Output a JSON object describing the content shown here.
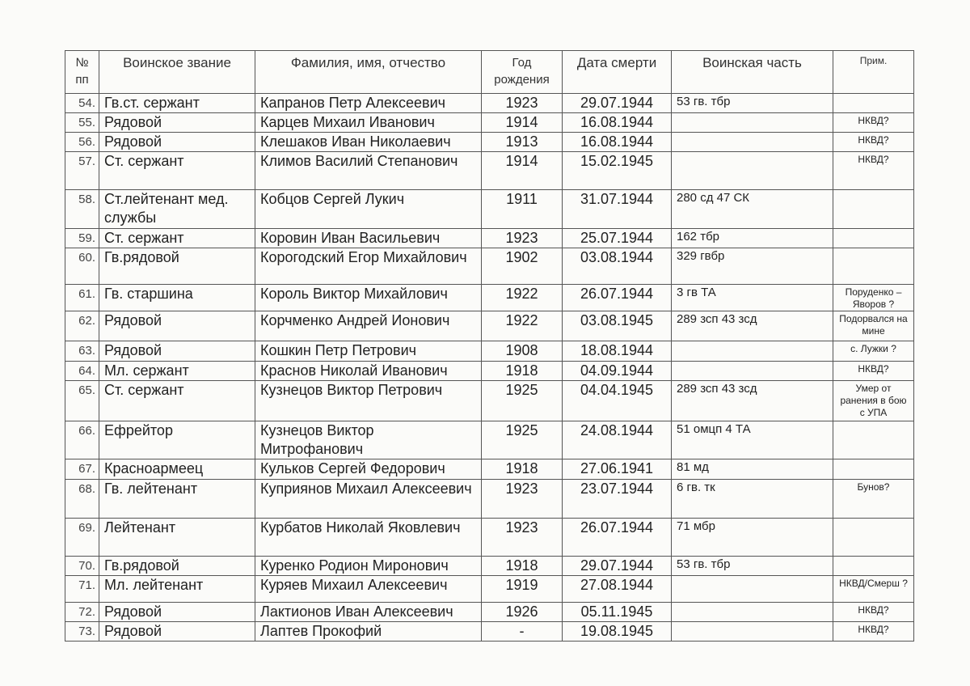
{
  "header": {
    "num": "№ пп",
    "rank": "Воинское звание",
    "name": "Фамилия, имя, отчество",
    "birth": "Год рождения",
    "death": "Дата смерти",
    "unit": "Воинская часть",
    "note": "Прим."
  },
  "rows": [
    {
      "num": "54.",
      "rank": "Гв.ст. сержант",
      "name": "Капранов Петр Алексеевич",
      "birth": "1923",
      "death": "29.07.1944",
      "unit": "53 гв. тбр",
      "note": ""
    },
    {
      "num": "55.",
      "rank": "Рядовой",
      "name": "Карцев Михаил Иванович",
      "birth": "1914",
      "death": "16.08.1944",
      "unit": "",
      "note": "НКВД?"
    },
    {
      "num": "56.",
      "rank": "Рядовой",
      "name": "Клешаков Иван Николаевич",
      "birth": "1913",
      "death": "16.08.1944",
      "unit": "",
      "note": "НКВД?"
    },
    {
      "num": "57.",
      "rank": "Ст. сержант",
      "name": "Климов Василий Степанович",
      "birth": "1914",
      "death": "15.02.1945",
      "unit": "",
      "note": "НКВД?"
    },
    {
      "num": "58.",
      "rank": "Ст.лейтенант мед. службы",
      "name": "Кобцов Сергей Лукич",
      "birth": "1911",
      "death": "31.07.1944",
      "unit": "280 сд 47 СК",
      "note": ""
    },
    {
      "num": "59.",
      "rank": "Ст. сержант",
      "name": "Коровин Иван Васильевич",
      "birth": "1923",
      "death": "25.07.1944",
      "unit": "162 тбр",
      "note": ""
    },
    {
      "num": "60.",
      "rank": "Гв.рядовой",
      "name": "Корогодский Егор Михайлович",
      "birth": "1902",
      "death": "03.08.1944",
      "unit": "329 гвбр",
      "note": ""
    },
    {
      "num": "61.",
      "rank": "Гв. старшина",
      "name": "Король Виктор Михайлович",
      "birth": "1922",
      "death": "26.07.1944",
      "unit": "3 гв ТА",
      "note": "Поруденко – Яворов ?"
    },
    {
      "num": "62.",
      "rank": "Рядовой",
      "name": "Корчменко Андрей Ионович",
      "birth": "1922",
      "death": "03.08.1945",
      "unit": "289 зсп 43 зсд",
      "note": "Подорвался на мине"
    },
    {
      "num": "63.",
      "rank": "Рядовой",
      "name": "Кошкин Петр Петрович",
      "birth": "1908",
      "death": "18.08.1944",
      "unit": "",
      "note": "с. Лужки ?"
    },
    {
      "num": "64.",
      "rank": "Мл. сержант",
      "name": "Краснов Николай Иванович",
      "birth": "1918",
      "death": "04.09.1944",
      "unit": "",
      "note": "НКВД?"
    },
    {
      "num": "65.",
      "rank": "Ст. сержант",
      "name": "Кузнецов Виктор Петрович",
      "birth": "1925",
      "death": "04.04.1945",
      "unit": "289 зсп 43 зсд",
      "note": "Умер от ранения в бою с УПА"
    },
    {
      "num": "66.",
      "rank": "Ефрейтор",
      "name": "Кузнецов Виктор Митрофанович",
      "birth": "1925",
      "death": "24.08.1944",
      "unit": "51 омцп 4 ТА",
      "note": ""
    },
    {
      "num": "67.",
      "rank": "Красноармеец",
      "name": "Кульков Сергей Федорович",
      "birth": "1918",
      "death": "27.06.1941",
      "unit": "81 мд",
      "note": ""
    },
    {
      "num": "68.",
      "rank": "Гв. лейтенант",
      "name": "Куприянов Михаил Алексеевич",
      "birth": "1923",
      "death": "23.07.1944",
      "unit": "6 гв. тк",
      "note": "Бунов?"
    },
    {
      "num": "69.",
      "rank": "Лейтенант",
      "name": "Курбатов Николай Яковлевич",
      "birth": "1923",
      "death": "26.07.1944",
      "unit": "71 мбр",
      "note": ""
    },
    {
      "num": "70.",
      "rank": "Гв.рядовой",
      "name": "Куренко Родион Миронович",
      "birth": "1918",
      "death": "29.07.1944",
      "unit": "53 гв. тбр",
      "note": ""
    },
    {
      "num": "71.",
      "rank": "Мл. лейтенант",
      "name": "Куряев Михаил Алексеевич",
      "birth": "1919",
      "death": "27.08.1944",
      "unit": "",
      "note": "НКВД/Смерш ?"
    },
    {
      "num": "72.",
      "rank": "Рядовой",
      "name": "Лактионов Иван Алексеевич",
      "birth": "1926",
      "death": "05.11.1945",
      "unit": "",
      "note": "НКВД?"
    },
    {
      "num": "73.",
      "rank": "Рядовой",
      "name": "Лаптев Прокофий",
      "birth": "-",
      "death": "19.08.1945",
      "unit": "",
      "note": "НКВД?"
    }
  ]
}
